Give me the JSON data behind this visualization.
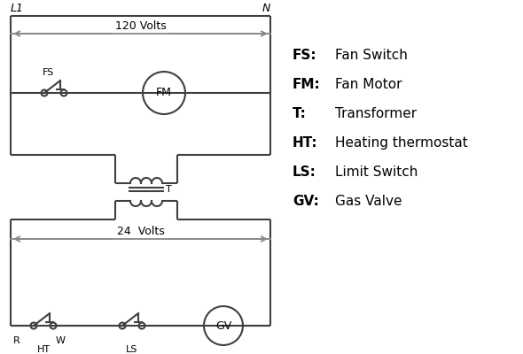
{
  "bg_color": "#ffffff",
  "line_color": "#404040",
  "arrow_color": "#888888",
  "text_color": "#000000",
  "legend_items": [
    [
      "FS:",
      "Fan Switch"
    ],
    [
      "FM:",
      "Fan Motor"
    ],
    [
      "T:",
      "Transformer"
    ],
    [
      "HT:",
      "Heating thermostat"
    ],
    [
      "LS:",
      "Limit Switch"
    ],
    [
      "GV:",
      "Gas Valve"
    ]
  ]
}
